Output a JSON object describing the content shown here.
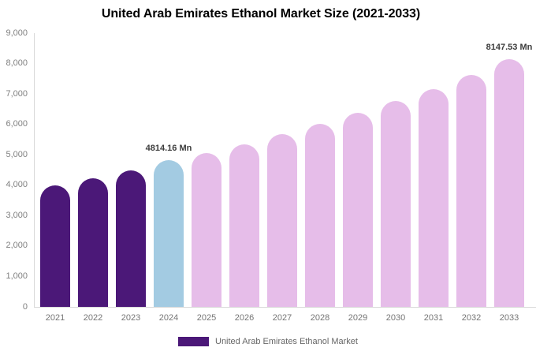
{
  "title": "United Arab Emirates Ethanol Market Size (2021-2033)",
  "legend": {
    "label": "United Arab Emirates Ethanol Market",
    "swatch_color": "#4b1878"
  },
  "colors": {
    "historical_bar": "#4b1878",
    "current_year_bar": "#a3cbe2",
    "forecast_bar": "#e6bde9",
    "axis_line": "#d8d8d8",
    "tick_text": "#808080",
    "year_text": "#757575",
    "value_label_text": "#3c3c3c"
  },
  "chart_data": {
    "type": "bar",
    "title": "United Arab Emirates Ethanol Market Size (2021-2033)",
    "xlabel": "",
    "ylabel": "",
    "unit": "Mn",
    "categories": [
      "2021",
      "2022",
      "2023",
      "2024",
      "2025",
      "2026",
      "2027",
      "2028",
      "2029",
      "2030",
      "2031",
      "2032",
      "2033"
    ],
    "values": [
      3990,
      4230,
      4480,
      4814.16,
      5060,
      5350,
      5680,
      6030,
      6380,
      6760,
      7150,
      7620,
      8147.53
    ],
    "bar_colors": [
      "#4b1878",
      "#4b1878",
      "#4b1878",
      "#a3cbe2",
      "#e6bde9",
      "#e6bde9",
      "#e6bde9",
      "#e6bde9",
      "#e6bde9",
      "#e6bde9",
      "#e6bde9",
      "#e6bde9",
      "#e6bde9"
    ],
    "value_labels": {
      "2024": "4814.16 Mn",
      "2033": "8147.53 Mn"
    },
    "ylim": [
      0,
      9000
    ],
    "yticks": [
      {
        "value": 0,
        "label": "0"
      },
      {
        "value": 1000,
        "label": "1,000"
      },
      {
        "value": 2000,
        "label": "2,000"
      },
      {
        "value": 3000,
        "label": "3,000"
      },
      {
        "value": 4000,
        "label": "4,000"
      },
      {
        "value": 5000,
        "label": "5,000"
      },
      {
        "value": 6000,
        "label": "6,000"
      },
      {
        "value": 7000,
        "label": "7,000"
      },
      {
        "value": 8000,
        "label": "8,000"
      },
      {
        "value": 9000,
        "label": "9,000"
      }
    ],
    "grid": false,
    "legend_position": "bottom",
    "legend_entries": [
      "United Arab Emirates Ethanol Market"
    ]
  }
}
